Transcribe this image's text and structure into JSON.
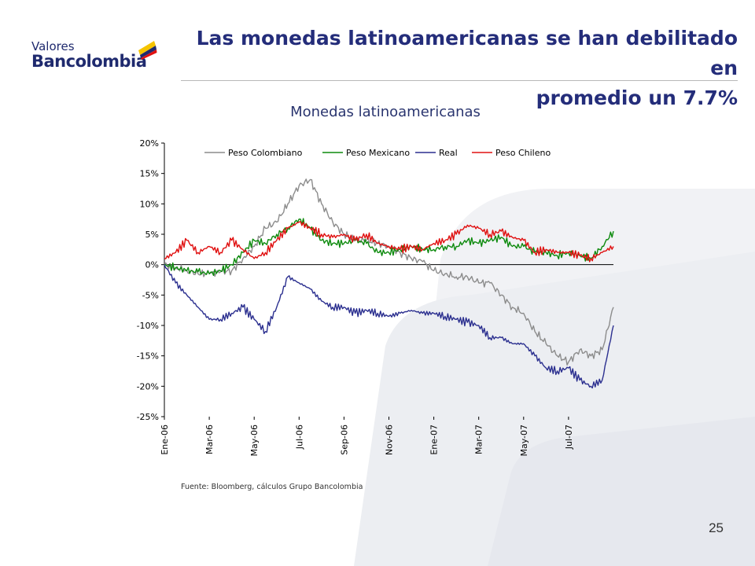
{
  "logo": {
    "line1": "Valores",
    "line2": "Bancolombia"
  },
  "title": {
    "line1": "Las monedas latinoamericanas se han debilitado en",
    "line2": "promedio un 7.7%"
  },
  "footer": {
    "source": "Fuente: Bloomberg, cálculos Grupo Bancolombia",
    "page_number": "25"
  },
  "colors": {
    "title": "#242d7a",
    "colombiano": "#8c8c8c",
    "mexicano": "#0d8a0d",
    "real": "#2b2f8f",
    "chileno": "#e01010"
  },
  "chart_data": {
    "type": "line",
    "title": "Monedas latinoamericanas",
    "xlabel": "",
    "ylabel": "",
    "ylim": [
      -0.25,
      0.2
    ],
    "yticks": [
      0.2,
      0.15,
      0.1,
      0.05,
      0,
      -0.05,
      -0.1,
      -0.15,
      -0.2,
      -0.25
    ],
    "ytick_labels": [
      "20%",
      "15%",
      "10%",
      "5%",
      "0%",
      "-5%",
      "-10%",
      "-15%",
      "-20%",
      "-25%"
    ],
    "x_range": [
      0,
      20
    ],
    "xticks": [
      0,
      2,
      4,
      6,
      8,
      10,
      12,
      14,
      16,
      18
    ],
    "xtick_labels": [
      "Ene-06",
      "Mar-06",
      "May-06",
      "Jul-06",
      "Sep-06",
      "Nov-06",
      "Ene-07",
      "Mar-07",
      "May-07",
      "Jul-07"
    ],
    "legend_position": "top",
    "grid": false,
    "x": [
      0,
      0.5,
      1,
      1.5,
      2,
      2.5,
      3,
      3.5,
      4,
      4.5,
      5,
      5.5,
      6,
      6.5,
      7,
      7.5,
      8,
      8.5,
      9,
      9.5,
      10,
      10.5,
      11,
      11.5,
      12,
      12.5,
      13,
      13.5,
      14,
      14.5,
      15,
      15.5,
      16,
      16.5,
      17,
      17.5,
      18,
      18.5,
      19,
      19.5,
      20
    ],
    "series": [
      {
        "name": "Peso Colombiano",
        "color": "#8c8c8c",
        "values": [
          0,
          -0.005,
          -0.01,
          -0.015,
          -0.015,
          -0.012,
          -0.01,
          0.01,
          0.03,
          0.06,
          0.07,
          0.1,
          0.13,
          0.14,
          0.1,
          0.07,
          0.05,
          0.04,
          0.04,
          0.035,
          0.03,
          0.02,
          0.01,
          0.005,
          -0.01,
          -0.015,
          -0.02,
          -0.02,
          -0.03,
          -0.03,
          -0.05,
          -0.07,
          -0.08,
          -0.11,
          -0.13,
          -0.15,
          -0.16,
          -0.14,
          -0.15,
          -0.14,
          -0.07
        ]
      },
      {
        "name": "Peso Mexicano",
        "color": "#0d8a0d",
        "values": [
          0,
          -0.005,
          -0.01,
          -0.012,
          -0.015,
          -0.01,
          0,
          0.02,
          0.04,
          0.035,
          0.05,
          0.06,
          0.075,
          0.06,
          0.04,
          0.035,
          0.035,
          0.04,
          0.035,
          0.02,
          0.02,
          0.025,
          0.03,
          0.025,
          0.025,
          0.03,
          0.03,
          0.04,
          0.035,
          0.04,
          0.045,
          0.03,
          0.03,
          0.02,
          0.02,
          0.015,
          0.02,
          0.015,
          0.01,
          0.03,
          0.055
        ]
      },
      {
        "name": "Real",
        "color": "#2b2f8f",
        "values": [
          0,
          -0.03,
          -0.05,
          -0.07,
          -0.09,
          -0.09,
          -0.08,
          -0.07,
          -0.09,
          -0.11,
          -0.07,
          -0.02,
          -0.03,
          -0.04,
          -0.06,
          -0.07,
          -0.07,
          -0.08,
          -0.075,
          -0.08,
          -0.085,
          -0.08,
          -0.075,
          -0.08,
          -0.08,
          -0.085,
          -0.09,
          -0.095,
          -0.1,
          -0.12,
          -0.12,
          -0.13,
          -0.13,
          -0.15,
          -0.17,
          -0.175,
          -0.17,
          -0.19,
          -0.2,
          -0.19,
          -0.1
        ]
      },
      {
        "name": "Peso Chileno",
        "color": "#e01010",
        "values": [
          0.01,
          0.02,
          0.04,
          0.02,
          0.03,
          0.02,
          0.04,
          0.025,
          0.01,
          0.02,
          0.04,
          0.06,
          0.07,
          0.06,
          0.05,
          0.045,
          0.05,
          0.04,
          0.05,
          0.035,
          0.03,
          0.025,
          0.03,
          0.025,
          0.035,
          0.04,
          0.05,
          0.065,
          0.06,
          0.05,
          0.055,
          0.045,
          0.04,
          0.02,
          0.025,
          0.02,
          0.02,
          0.015,
          0.01,
          0.02,
          0.03
        ]
      }
    ]
  }
}
